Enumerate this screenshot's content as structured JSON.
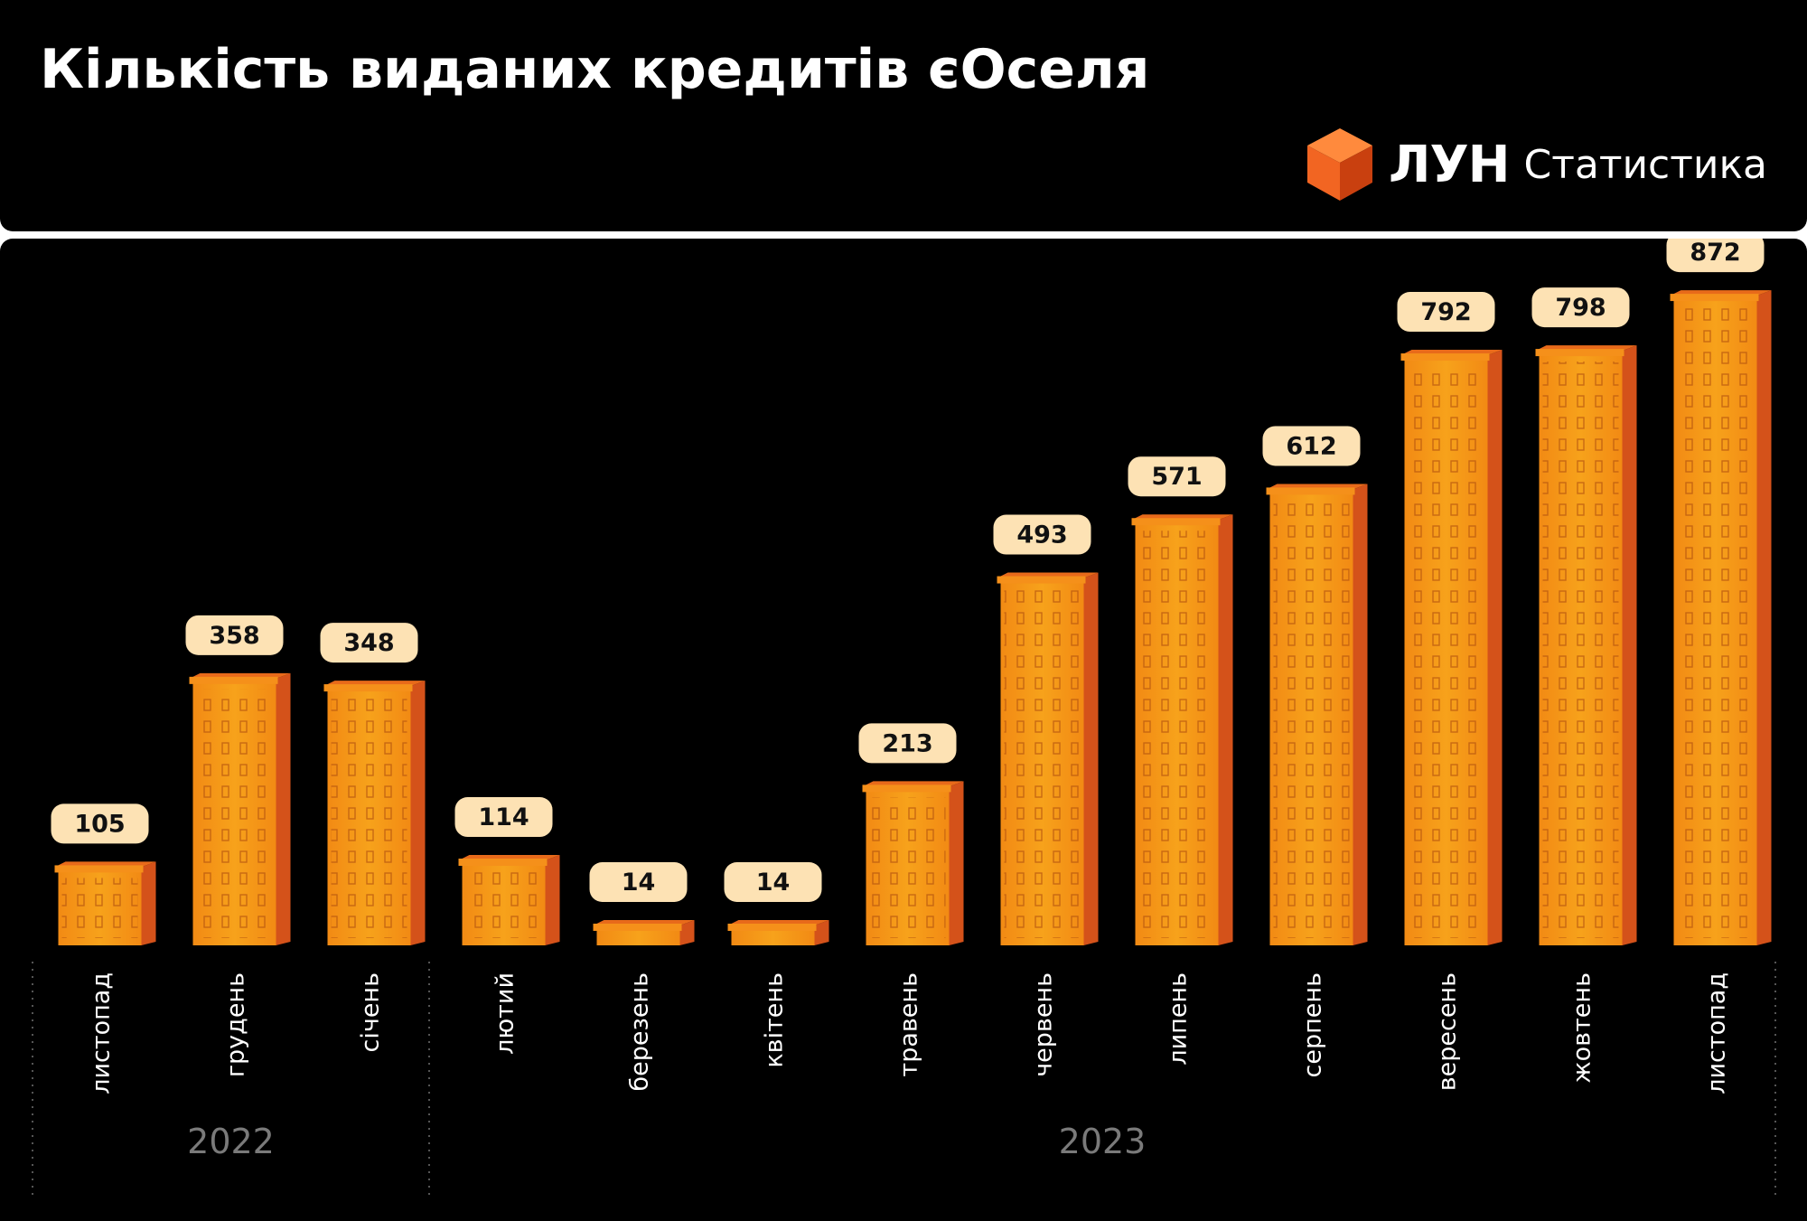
{
  "header": {
    "title": "Кількість виданих кредитів єОселя",
    "logo_brand": "ЛУН",
    "logo_sub": "Статистика"
  },
  "colors": {
    "background": "#000000",
    "bar_front": "#f7a21b",
    "bar_side": "#d4521a",
    "label_bubble": "#fde2b4",
    "year_label": "#7a7a7a",
    "logo_cube": "#f26522"
  },
  "chart_data": {
    "type": "bar",
    "categories": [
      "листопад",
      "грудень",
      "січень",
      "лютий",
      "березень",
      "квітень",
      "травень",
      "червень",
      "липень",
      "серпень",
      "вересень",
      "жовтень",
      "листопад"
    ],
    "values": [
      105,
      358,
      348,
      114,
      14,
      14,
      213,
      493,
      571,
      612,
      792,
      798,
      872
    ],
    "year_groups": [
      {
        "label": "2022",
        "count": 3
      },
      {
        "label": "2023",
        "count": 10
      }
    ],
    "ylim": [
      0,
      900
    ],
    "grid": false,
    "legend": "none"
  }
}
